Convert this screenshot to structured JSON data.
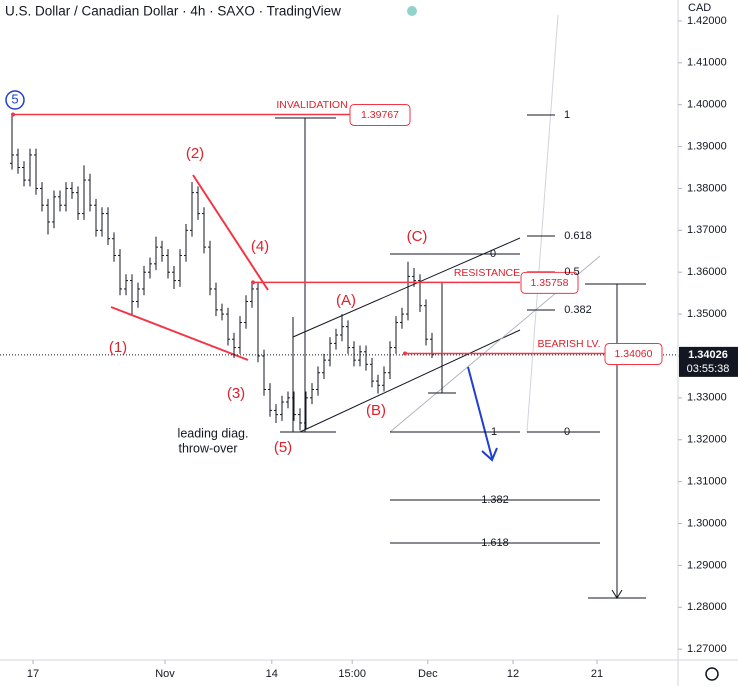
{
  "chart_data": {
    "type": "ohlc",
    "title": "U.S. Dollar / Canadian Dollar · 4h · SAXO · TradingView",
    "currency": "CAD",
    "color": "#131722",
    "open": [
      1.386,
      1.388,
      1.385,
      1.382,
      1.388,
      1.38,
      1.376,
      1.372,
      1.378,
      1.376,
      1.38,
      1.379,
      1.374,
      1.382,
      1.376,
      1.37,
      1.374,
      1.368,
      1.364,
      1.356,
      1.358,
      1.353,
      1.356,
      1.36,
      1.362,
      1.366,
      1.364,
      1.36,
      1.358,
      1.364,
      1.37,
      1.379,
      1.374,
      1.366,
      1.356,
      1.351,
      1.35,
      1.344,
      1.342,
      1.348,
      1.353,
      1.356,
      1.34,
      1.332,
      1.327,
      1.326,
      1.329,
      1.33,
      1.326,
      1.324,
      1.33,
      1.332,
      1.336,
      1.339,
      1.343,
      1.345,
      1.347,
      1.342,
      1.339,
      1.341,
      1.338,
      1.334,
      1.333,
      1.336,
      1.342,
      1.348,
      1.35,
      1.359,
      1.358,
      1.352,
      1.344
    ],
    "high": [
      1.3977,
      1.3895,
      1.3865,
      1.3895,
      1.3895,
      1.3815,
      1.3775,
      1.3795,
      1.3795,
      1.3815,
      1.3815,
      1.3805,
      1.3855,
      1.3835,
      1.3775,
      1.3755,
      1.3755,
      1.3695,
      1.3655,
      1.3595,
      1.3595,
      1.3575,
      1.3615,
      1.3635,
      1.3685,
      1.3675,
      1.3655,
      1.3615,
      1.3655,
      1.3715,
      1.3815,
      1.3805,
      1.3755,
      1.3675,
      1.3575,
      1.3525,
      1.3515,
      1.3455,
      1.3495,
      1.3545,
      1.3578,
      1.3575,
      1.3415,
      1.3335,
      1.3285,
      1.3305,
      1.3315,
      1.3315,
      1.3275,
      1.3315,
      1.3335,
      1.3375,
      1.3405,
      1.3445,
      1.3465,
      1.35,
      1.3485,
      1.3435,
      1.3425,
      1.3425,
      1.3395,
      1.3355,
      1.3375,
      1.3435,
      1.3495,
      1.3515,
      1.3625,
      1.361,
      1.3595,
      1.3535,
      1.3455
    ],
    "low": [
      1.3845,
      1.3835,
      1.3805,
      1.3805,
      1.3785,
      1.3745,
      1.369,
      1.3705,
      1.3745,
      1.3745,
      1.3775,
      1.3725,
      1.3725,
      1.3745,
      1.3685,
      1.3685,
      1.3665,
      1.3625,
      1.3545,
      1.3545,
      1.35,
      1.3515,
      1.3545,
      1.3585,
      1.3605,
      1.3625,
      1.3585,
      1.356,
      1.3565,
      1.3625,
      1.3685,
      1.3725,
      1.3645,
      1.3545,
      1.3495,
      1.3485,
      1.3425,
      1.3395,
      1.3405,
      1.3465,
      1.3515,
      1.3385,
      1.3305,
      1.3255,
      1.324,
      1.3245,
      1.3275,
      1.3245,
      1.3222,
      1.3225,
      1.3285,
      1.3305,
      1.3345,
      1.3375,
      1.3415,
      1.3435,
      1.3405,
      1.3375,
      1.3375,
      1.3365,
      1.3325,
      1.331,
      1.3315,
      1.3345,
      1.3405,
      1.3465,
      1.3485,
      1.3565,
      1.3505,
      1.3425,
      1.3395
    ],
    "close": [
      1.388,
      1.385,
      1.382,
      1.388,
      1.38,
      1.376,
      1.372,
      1.378,
      1.376,
      1.38,
      1.379,
      1.374,
      1.382,
      1.376,
      1.37,
      1.374,
      1.368,
      1.364,
      1.356,
      1.358,
      1.353,
      1.356,
      1.36,
      1.362,
      1.366,
      1.364,
      1.36,
      1.358,
      1.364,
      1.37,
      1.379,
      1.374,
      1.366,
      1.356,
      1.351,
      1.35,
      1.344,
      1.342,
      1.348,
      1.353,
      1.356,
      1.34,
      1.332,
      1.327,
      1.326,
      1.329,
      1.33,
      1.326,
      1.324,
      1.33,
      1.332,
      1.336,
      1.339,
      1.343,
      1.345,
      1.347,
      1.342,
      1.339,
      1.341,
      1.338,
      1.334,
      1.333,
      1.336,
      1.342,
      1.348,
      1.35,
      1.359,
      1.358,
      1.352,
      1.344,
      1.3403
    ],
    "xlim": [
      -2,
      111
    ],
    "xticks": [
      {
        "value": 3.5,
        "label": "17"
      },
      {
        "value": 25.5,
        "label": "Nov"
      },
      {
        "value": 43.3,
        "label": "14"
      },
      {
        "value": 56.7,
        "label": "15:00"
      },
      {
        "value": 69.3,
        "label": "Dec"
      },
      {
        "value": 83.5,
        "label": "12"
      },
      {
        "value": 97.5,
        "label": "21"
      }
    ],
    "ylim": [
      1.2674,
      1.425
    ],
    "yticks": [
      {
        "value": 1.27,
        "label": "1.27000"
      },
      {
        "value": 1.28,
        "label": "1.28000"
      },
      {
        "value": 1.29,
        "label": "1.29000"
      },
      {
        "value": 1.3,
        "label": "1.30000"
      },
      {
        "value": 1.31,
        "label": "1.31000"
      },
      {
        "value": 1.32,
        "label": "1.32000"
      },
      {
        "value": 1.33,
        "label": "1.33000"
      },
      {
        "value": 1.34,
        "label": "1.34000"
      },
      {
        "value": 1.35,
        "label": "1.35000"
      },
      {
        "value": 1.36,
        "label": "1.36000"
      },
      {
        "value": 1.37,
        "label": "1.37000"
      },
      {
        "value": 1.38,
        "label": "1.38000"
      },
      {
        "value": 1.39,
        "label": "1.39000"
      },
      {
        "value": 1.4,
        "label": "1.40000"
      },
      {
        "value": 1.41,
        "label": "1.41000"
      },
      {
        "value": 1.42,
        "label": "1.42000"
      }
    ],
    "last_price": 1.34026,
    "countdown": "03:55:38",
    "levels": [
      {
        "name": "INVALIDATION",
        "value": 1.39767
      },
      {
        "name": "RESISTANCE",
        "value": 1.35758
      },
      {
        "name": "BEARISH LV.",
        "value": 1.3406,
        "label": "1.34060"
      }
    ],
    "wave_labels": [
      "5",
      "(1)",
      "(2)",
      "(3)",
      "(4)",
      "(5)",
      "(A)",
      "(B)",
      "(C)"
    ],
    "notes": [
      "leading diag.",
      "throw-over"
    ],
    "fib_a": [
      1,
      0.618,
      0.5,
      0.382,
      0
    ],
    "fib_b": [
      0,
      1,
      1.382,
      1.618
    ]
  }
}
